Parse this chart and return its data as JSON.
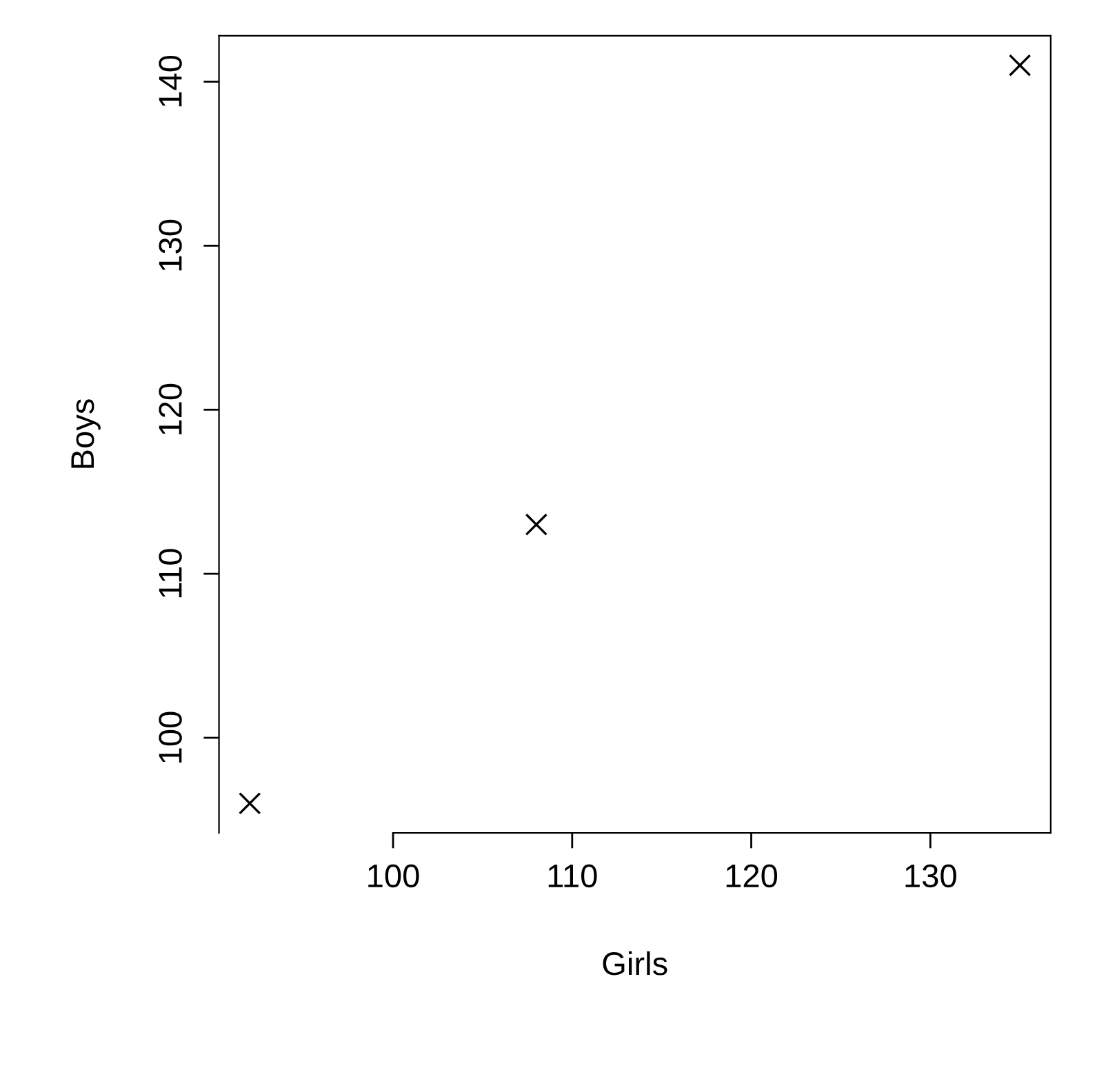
{
  "chart_data": {
    "type": "scatter",
    "xlabel": "Girls",
    "ylabel": "Boys",
    "x": [
      92,
      108,
      135
    ],
    "values": [
      96,
      113,
      141
    ],
    "color": "#000000",
    "marker": "cross",
    "xlim": [
      90.28,
      136.72
    ],
    "ylim": [
      94.2,
      142.8
    ],
    "xticks": [
      100,
      110,
      120,
      130
    ],
    "yticks": [
      100,
      110,
      120,
      130,
      140
    ],
    "grid": false
  }
}
